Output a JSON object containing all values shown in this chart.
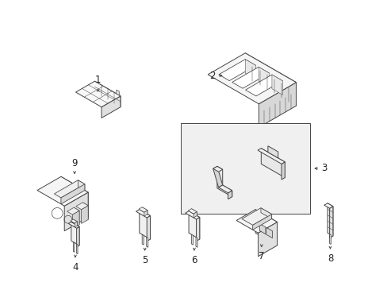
{
  "background_color": "#ffffff",
  "line_color": "#444444",
  "fig_width": 4.89,
  "fig_height": 3.6,
  "dpi": 100
}
